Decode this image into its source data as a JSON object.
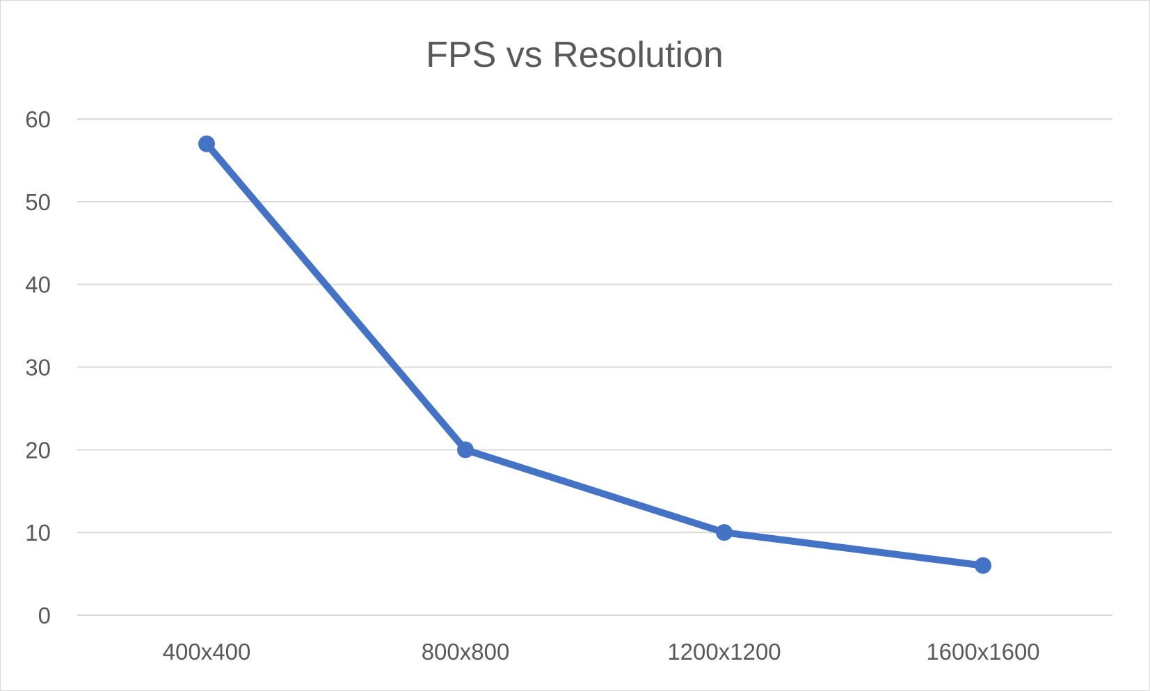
{
  "chart_data": {
    "type": "line",
    "title": "FPS vs Resolution",
    "xlabel": "",
    "ylabel": "",
    "categories": [
      "400x400",
      "800x800",
      "1200x1200",
      "1600x1600"
    ],
    "series": [
      {
        "values": [
          57,
          20,
          10,
          6
        ]
      }
    ],
    "ylim": [
      0,
      60
    ],
    "yticks": [
      0,
      10,
      20,
      30,
      40,
      50,
      60
    ],
    "grid": true,
    "legend": "none",
    "series_color": "#4472c4"
  }
}
